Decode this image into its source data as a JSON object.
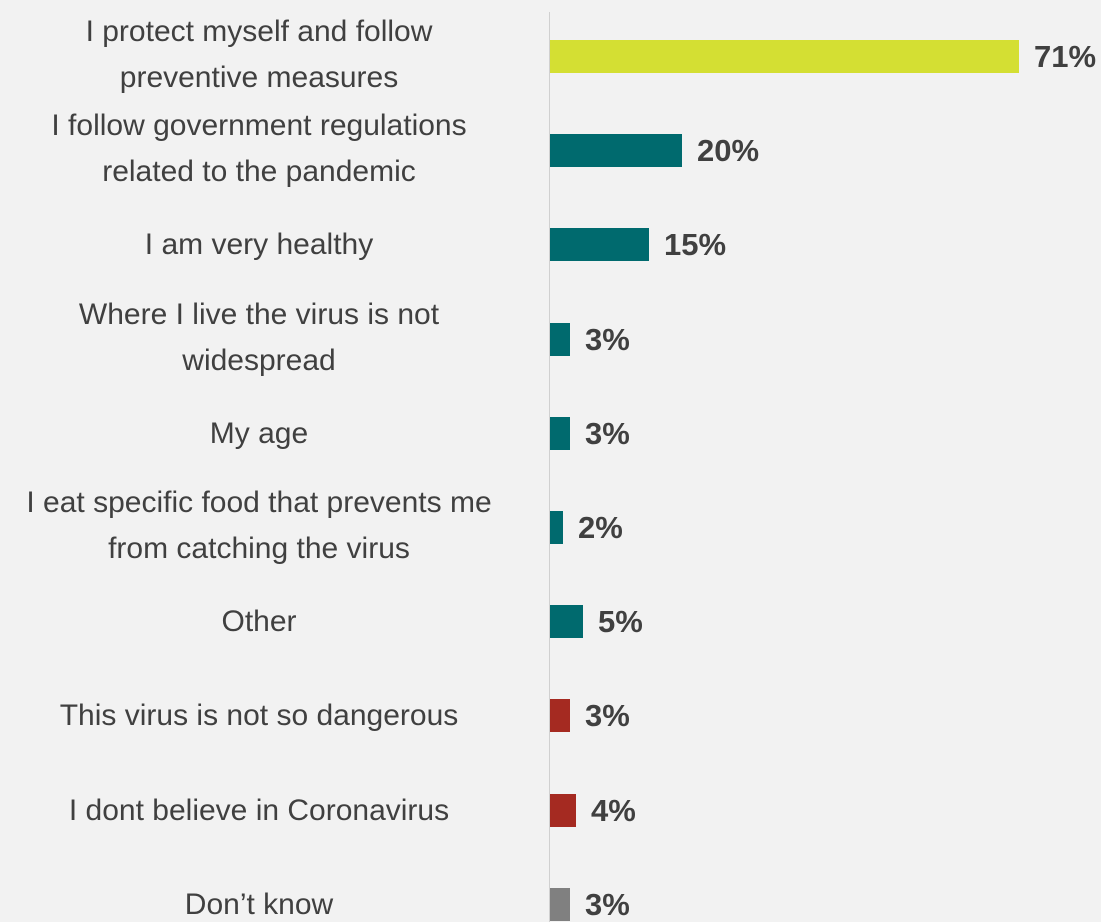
{
  "chart_data": {
    "type": "bar",
    "orientation": "horizontal",
    "categories": [
      [
        "I protect myself and follow",
        "preventive measures"
      ],
      [
        "I follow government regulations",
        "related to the pandemic"
      ],
      [
        "I am very healthy"
      ],
      [
        "Where I live the virus is not",
        "widespread"
      ],
      [
        "My age"
      ],
      [
        "I eat specific food that prevents me",
        "from catching the virus"
      ],
      [
        "Other"
      ],
      [
        "This virus is not so dangerous"
      ],
      [
        "I dont believe in Coronavirus"
      ],
      [
        "Don’t know"
      ]
    ],
    "values": [
      71,
      20,
      15,
      3,
      3,
      2,
      5,
      3,
      4,
      3
    ],
    "value_labels": [
      "71%",
      "20%",
      "15%",
      "3%",
      "3%",
      "2%",
      "5%",
      "3%",
      "4%",
      "3%"
    ],
    "bar_colors": [
      "#d4df33",
      "#006a6e",
      "#006a6e",
      "#006a6e",
      "#006a6e",
      "#006a6e",
      "#006a6e",
      "#a52a21",
      "#a52a21",
      "#808080"
    ],
    "xlim": [
      0,
      100
    ],
    "grid": false,
    "legend": "none"
  }
}
